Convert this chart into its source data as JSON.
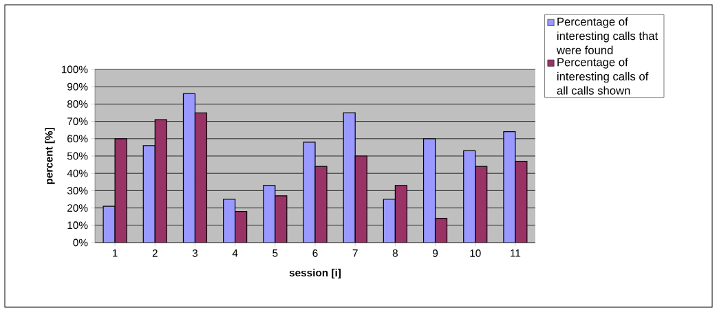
{
  "chart_data": {
    "type": "bar",
    "xlabel": "session [i]",
    "ylabel": "percent [%]",
    "categories": [
      "1",
      "2",
      "3",
      "4",
      "5",
      "6",
      "7",
      "8",
      "9",
      "10",
      "11"
    ],
    "series": [
      {
        "name": "Percentage of interesting calls that were found",
        "color": "#9999ff",
        "values": [
          21,
          56,
          86,
          25,
          33,
          58,
          75,
          25,
          60,
          53,
          64
        ]
      },
      {
        "name": "Percentage of interesting calls of all calls shown",
        "color": "#993366",
        "values": [
          60,
          71,
          75,
          18,
          27,
          44,
          50,
          33,
          14,
          44,
          47
        ]
      }
    ],
    "ylim": [
      0,
      100
    ],
    "yticks": [
      {
        "value": 0,
        "label": "0%"
      },
      {
        "value": 10,
        "label": "10%"
      },
      {
        "value": 20,
        "label": "20%"
      },
      {
        "value": 30,
        "label": "30%"
      },
      {
        "value": 40,
        "label": "40%"
      },
      {
        "value": 50,
        "label": "50%"
      },
      {
        "value": 60,
        "label": "60%"
      },
      {
        "value": 70,
        "label": "70%"
      },
      {
        "value": 80,
        "label": "80%"
      },
      {
        "value": 90,
        "label": "90%"
      },
      {
        "value": 100,
        "label": "100%"
      }
    ],
    "grid": "y",
    "legend": "top right"
  }
}
